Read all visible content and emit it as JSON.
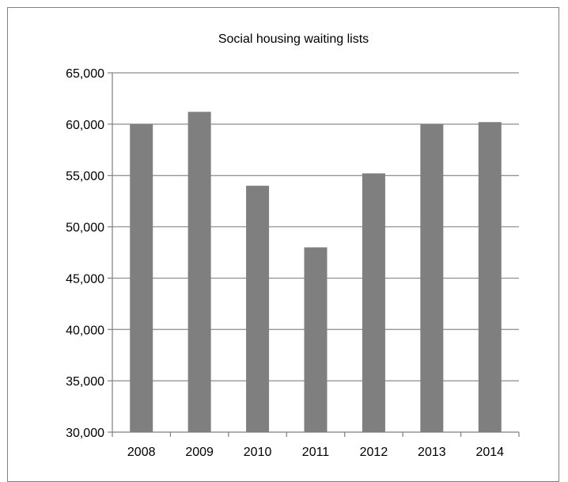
{
  "chart_data": {
    "type": "bar",
    "title": "Social housing waiting lists",
    "xlabel": "",
    "ylabel": "",
    "categories": [
      "2008",
      "2009",
      "2010",
      "2011",
      "2012",
      "2013",
      "2014"
    ],
    "values": [
      60000,
      61200,
      54000,
      48000,
      55200,
      60000,
      60200
    ],
    "ylim": [
      30000,
      65000
    ],
    "ytick_step": 5000,
    "ytick_labels": [
      "30,000",
      "35,000",
      "40,000",
      "45,000",
      "50,000",
      "55,000",
      "60,000",
      "65,000"
    ],
    "grid": true,
    "legend": "none",
    "colors": {
      "bar": "#7f7f7f",
      "grid": "#8c8c8c",
      "axis": "#7f7f7f",
      "frame": "#7f7f7f"
    }
  }
}
